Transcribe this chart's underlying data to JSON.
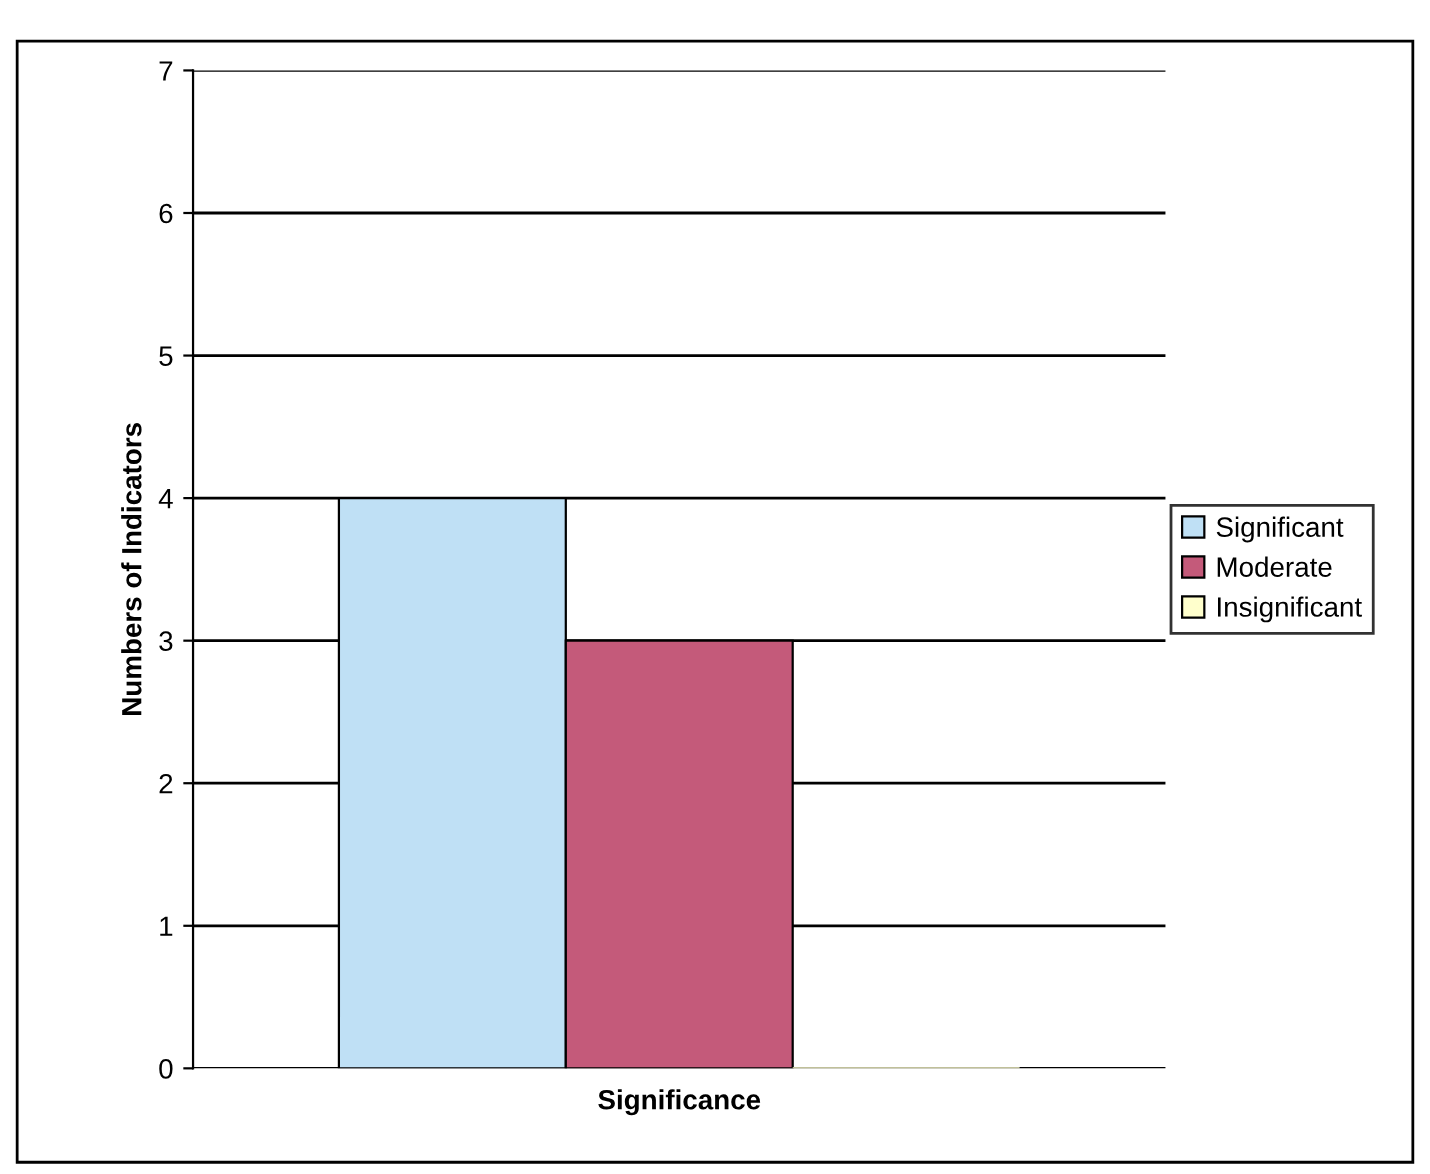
{
  "chart_data": {
    "type": "bar",
    "xlabel": "Significance",
    "ylabel": "Numbers of Indicators",
    "categories": [
      null
    ],
    "series": [
      {
        "name": "Significant",
        "color": "#bfe0f5",
        "values": [
          4
        ]
      },
      {
        "name": "Moderate",
        "color": "#c45a7a",
        "values": [
          3
        ]
      },
      {
        "name": "Insignificant",
        "color": "#ffffcc",
        "values": [
          0
        ]
      }
    ],
    "ylim": [
      0,
      7
    ],
    "yticks": [
      0,
      1,
      2,
      3,
      4,
      5,
      6,
      7
    ],
    "grid": "y",
    "legend": "right"
  }
}
